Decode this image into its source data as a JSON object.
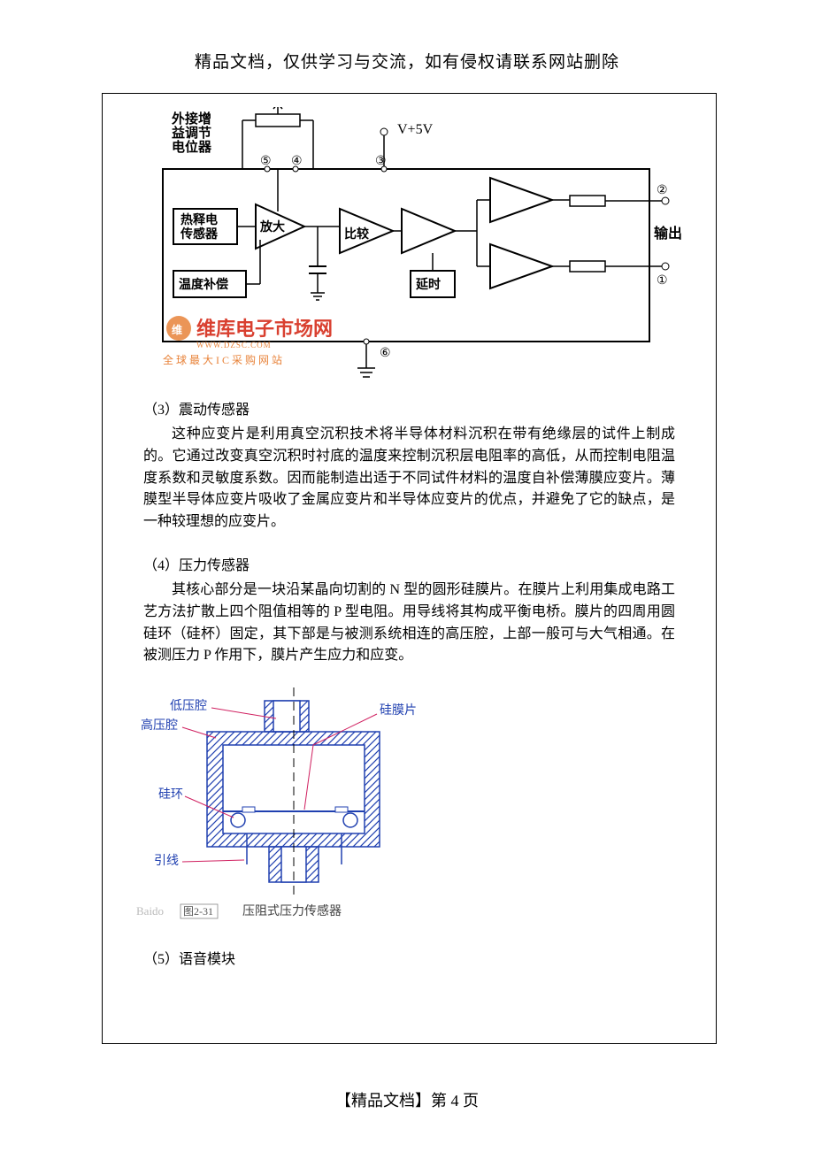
{
  "header": {
    "notice": "精品文档，仅供学习与交流，如有侵权请联系网站删除"
  },
  "circuit": {
    "type": "diagram",
    "labels": {
      "potentiometer": "外接增\n益调节\n电位器",
      "voltage": "V+5V",
      "pyro_sensor": "热释电\n传感器",
      "amplify": "放大",
      "compare": "比较",
      "delay": "延时",
      "temp_comp": "温度补偿",
      "output": "输出"
    },
    "pins": {
      "p1": "①",
      "p2": "②",
      "p3": "③",
      "p4": "④",
      "p5": "⑤",
      "p6": "⑥"
    },
    "watermark": {
      "line1": "维库电子市场网",
      "line2": "WWW.DZSC.COM",
      "line3": "全球最大IC采购网站"
    },
    "colors": {
      "stroke": "#000000",
      "fill_bg": "#ffffff",
      "watermark_orange": "#e8833a",
      "watermark_red": "#d94030"
    }
  },
  "sections": {
    "s3": {
      "heading": "（3）震动传感器",
      "body": "这种应变片是利用真空沉积技术将半导体材料沉积在带有绝缘层的试件上制成的。它通过改变真空沉积时衬底的温度来控制沉积层电阻率的高低，从而控制电阻温度系数和灵敏度系数。因而能制造出适于不同试件材料的温度自补偿薄膜应变片。薄膜型半导体应变片吸收了金属应变片和半导体应变片的优点，并避免了它的缺点，是一种较理想的应变片。"
    },
    "s4": {
      "heading": "（4）压力传感器",
      "body": "其核心部分是一块沿某晶向切割的 N 型的圆形硅膜片。在膜片上利用集成电路工艺方法扩散上四个阻值相等的 P 型电阻。用导线将其构成平衡电桥。膜片的四周用圆硅环（硅杯）固定，其下部是与被测系统相连的高压腔，上部一般可与大气相通。在被测压力 P 作用下，膜片产生应力和应变。"
    },
    "s5": {
      "heading": "（5）语音模块"
    }
  },
  "pressure_diagram": {
    "type": "diagram",
    "labels": {
      "low_cavity": "低压腔",
      "high_cavity": "高压腔",
      "si_ring": "硅环",
      "lead": "引线",
      "si_membrane": "硅膜片",
      "fig_num": "图2-31",
      "caption": "压阻式压力传感器",
      "watermark": "Baido"
    },
    "colors": {
      "outline": "#2040b0",
      "hatch": "#2040b0",
      "label_line": "#d02060",
      "label_text": "#2040b0",
      "caption_text": "#404040"
    }
  },
  "footer": {
    "text": "【精品文档】第 4 页"
  }
}
